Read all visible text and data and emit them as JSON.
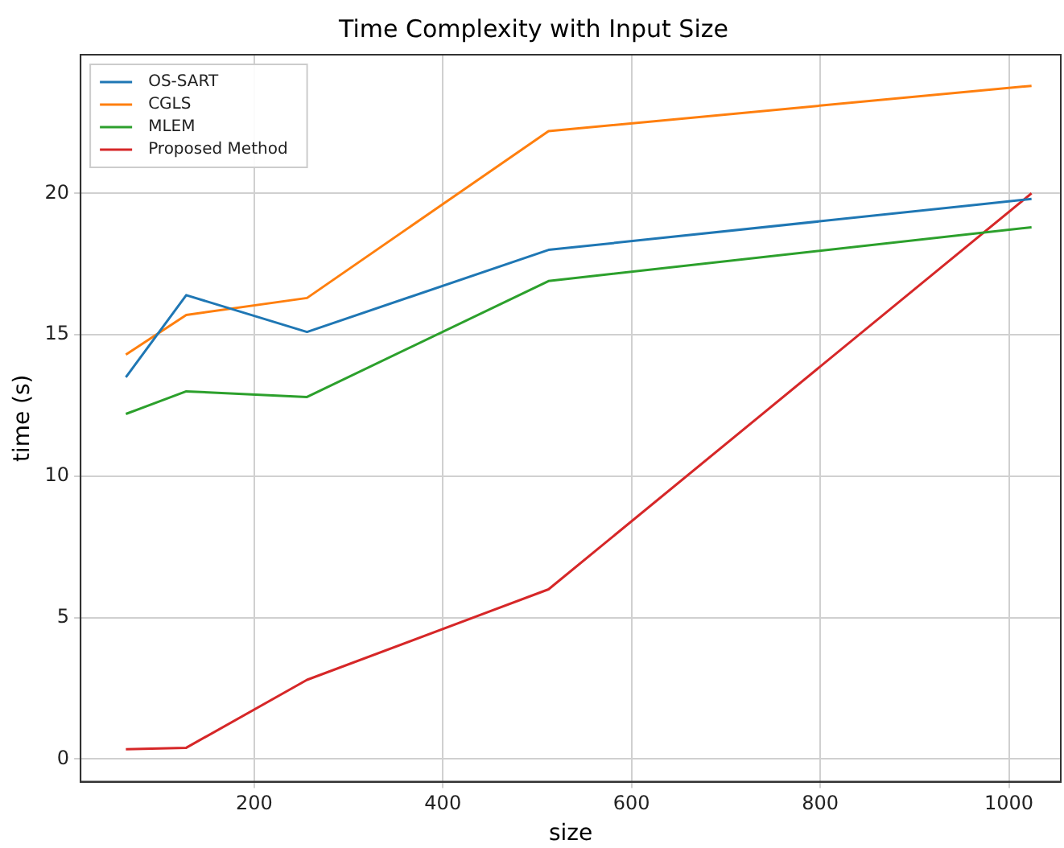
{
  "chart_data": {
    "type": "line",
    "title": "Time Complexity with Input Size",
    "xlabel": "size",
    "ylabel": "time (s)",
    "x": [
      64,
      128,
      256,
      512,
      1024
    ],
    "series": [
      {
        "name": "OS-SART",
        "color": "#1f77b4",
        "values": [
          13.5,
          16.4,
          15.1,
          18.0,
          19.8
        ]
      },
      {
        "name": "CGLS",
        "color": "#ff7f0e",
        "values": [
          14.3,
          15.7,
          16.3,
          22.2,
          23.8
        ]
      },
      {
        "name": "MLEM",
        "color": "#2ca02c",
        "values": [
          12.2,
          13.0,
          12.8,
          16.9,
          18.8
        ]
      },
      {
        "name": "Proposed Method",
        "color": "#d62728",
        "values": [
          0.35,
          0.4,
          2.8,
          6.0,
          20.0
        ]
      }
    ],
    "xlim": [
      16,
      1055
    ],
    "xticks": [
      200,
      400,
      600,
      800,
      1000
    ],
    "ylim": [
      -0.8,
      24.9
    ],
    "yticks": [
      0,
      5,
      10,
      15,
      20
    ],
    "grid": true,
    "legend": "top left",
    "marker": "none",
    "line_style": "solid"
  }
}
